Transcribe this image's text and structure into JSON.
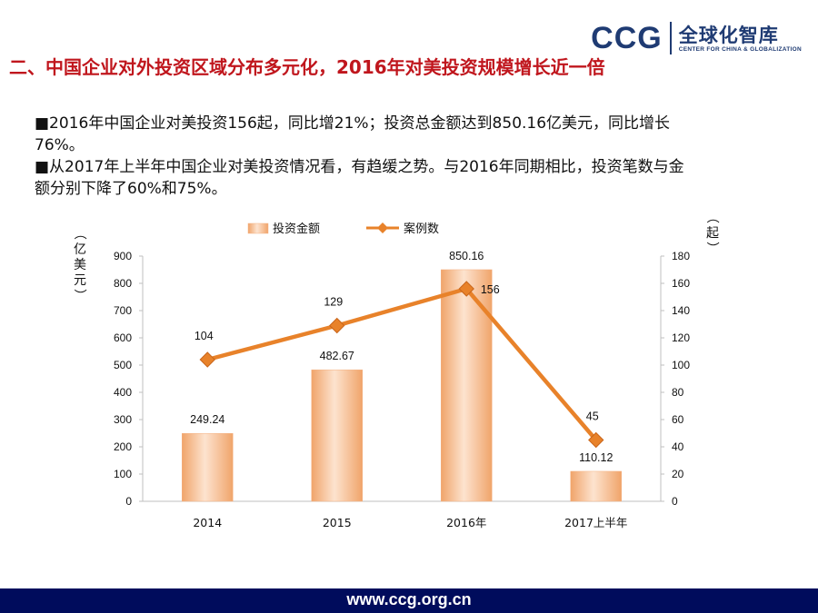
{
  "logo": {
    "ccg": "CCG",
    "cn_name": "全球化智库",
    "en_name": "CENTER FOR CHINA & GLOBALIZATION"
  },
  "title": "二、中国企业对外投资区域分布多元化，2016年对美投资规模增长近一倍",
  "bullets": [
    "■2016年中国企业对美投资156起，同比增21%；投资总金额达到850.16亿美元，同比增长76%。",
    "■从2017年上半年中国企业对美投资情况看，有趋缓之势。与2016年同期相比，投资笔数与金额分别下降了60%和75%。"
  ],
  "footer": {
    "url": "www.ccg.org.cn"
  },
  "colors": {
    "title": "#c0161d",
    "bar_fill_light": "#fde3cf",
    "bar_fill_dark": "#f0a46a",
    "line": "#e8822a",
    "footer_bg": "#000c5c",
    "logo": "#1f3b73"
  },
  "chart_data": {
    "type": "bar",
    "categories": [
      "2014",
      "2015",
      "2016年",
      "2017上半年"
    ],
    "series": [
      {
        "name": "投资金额",
        "type": "bar",
        "axis": "left",
        "values": [
          249.24,
          482.67,
          850.16,
          110.12
        ],
        "labels": [
          "249.24",
          "482.67",
          "850.16",
          "110.12"
        ]
      },
      {
        "name": "案例数",
        "type": "line",
        "axis": "right",
        "values": [
          104,
          129,
          156,
          45
        ],
        "labels": [
          "104",
          "129",
          "156",
          "45"
        ]
      }
    ],
    "ylabel_left": "（亿美元）",
    "ylabel_right": "（起）",
    "ylim_left": [
      0,
      900
    ],
    "ylim_right": [
      0,
      180
    ],
    "yticks_left": [
      "0",
      "100",
      "200",
      "300",
      "400",
      "500",
      "600",
      "700",
      "800",
      "900"
    ],
    "yticks_right": [
      "0",
      "20",
      "40",
      "60",
      "80",
      "100",
      "120",
      "140",
      "160",
      "180"
    ],
    "legend_position": "top",
    "grid": false
  }
}
